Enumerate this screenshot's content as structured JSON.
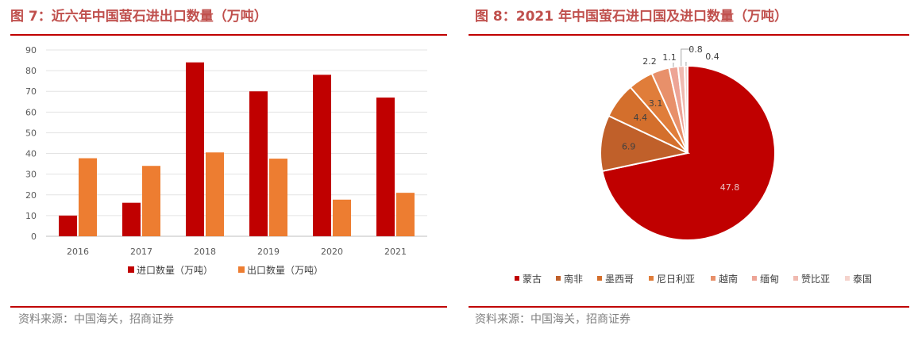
{
  "left": {
    "title": "图 7：近六年中国萤石进出口数量（万吨）",
    "source": "资料来源：中国海关，招商证券"
  },
  "right": {
    "title": "图 8：2021 年中国萤石进口国及进口数量（万吨）",
    "source": "资料来源：中国海关，招商证券"
  },
  "colors": {
    "title": "#c0504d",
    "rule": "#c00000",
    "import": "#c00000",
    "export": "#ed7d31"
  },
  "chart_data": [
    {
      "type": "bar",
      "title": "",
      "categories": [
        "2016",
        "2017",
        "2018",
        "2019",
        "2020",
        "2021"
      ],
      "series": [
        {
          "name": "进口数量（万吨）",
          "values": [
            10,
            16.2,
            84,
            70,
            78,
            67
          ],
          "color": "#c00000"
        },
        {
          "name": "出口数量（万吨）",
          "values": [
            37.7,
            34,
            40.5,
            37.5,
            17.7,
            21
          ],
          "color": "#ed7d31"
        }
      ],
      "ylim": [
        0,
        90
      ],
      "yticks": [
        0,
        10,
        20,
        30,
        40,
        50,
        60,
        70,
        80,
        90
      ],
      "grid": true,
      "legend": "bottom"
    },
    {
      "type": "pie",
      "title": "",
      "labels": [
        "蒙古",
        "南非",
        "墨西哥",
        "尼日利亚",
        "越南",
        "缅甸",
        "赞比亚",
        "泰国"
      ],
      "values": [
        47.8,
        6.9,
        4.4,
        3.1,
        2.2,
        1.1,
        0.8,
        0.4
      ],
      "data_labels": [
        "47.8",
        "6.9",
        "4.4",
        "3.1",
        "2.2",
        "1.1",
        "0.8",
        "0.4"
      ],
      "colors": [
        "#c00000",
        "#c0602a",
        "#d46f2c",
        "#e07d3a",
        "#e8906a",
        "#eda496",
        "#f0bab0",
        "#f5d3cc"
      ],
      "legend": "bottom"
    }
  ]
}
